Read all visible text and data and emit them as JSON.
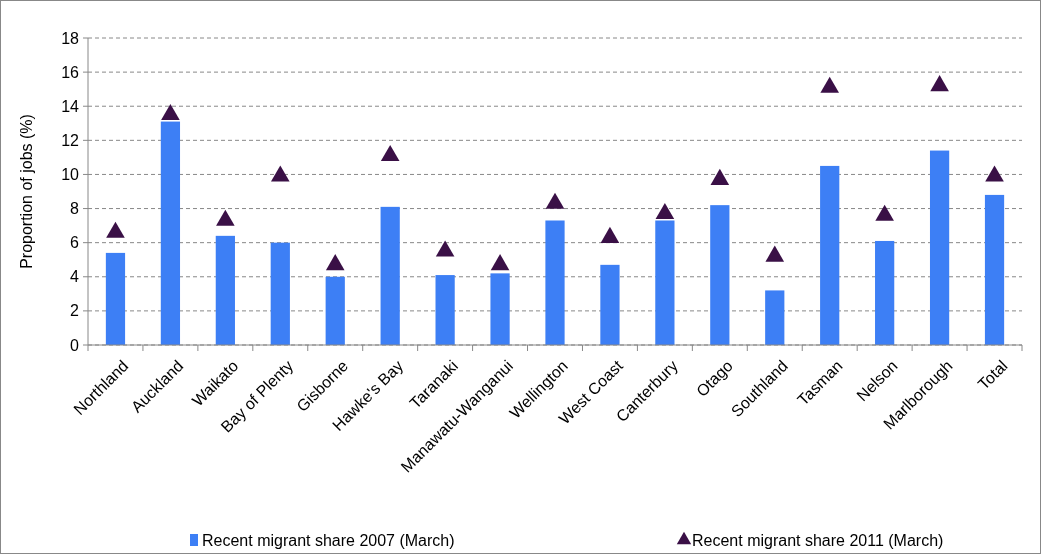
{
  "chart_data": {
    "type": "bar",
    "ylabel": "Proportion of jobs (%)",
    "categories": [
      "Northland",
      "Auckland",
      "Waikato",
      "Bay of Plenty",
      "Gisborne",
      "Hawke's Bay",
      "Taranaki",
      "Manawatu-Wanganui",
      "Wellington",
      "West Coast",
      "Canterbury",
      "Otago",
      "Southland",
      "Tasman",
      "Nelson",
      "Marlborough",
      "Total"
    ],
    "series": [
      {
        "name": "Recent migrant share 2007 (March)",
        "color": "#3d7ff5",
        "values": [
          5.4,
          13.1,
          6.4,
          6.0,
          4.0,
          8.1,
          4.1,
          4.2,
          7.3,
          4.7,
          7.3,
          8.2,
          3.2,
          10.5,
          6.1,
          11.4,
          8.8
        ]
      },
      {
        "name": "Recent migrant share 2011 (March)",
        "type": "scatter",
        "marker": "triangle",
        "color": "#3a1046",
        "x": [
          "Northland",
          "Auckland",
          "Waikato",
          "Bay of Plenty",
          "Gisborne",
          "Hawke's Bay",
          "Taranaki",
          "Manawatu-Wanganui",
          "Wellington",
          "West Coast",
          "Canterbury",
          "Otago",
          "Southland",
          "Tasman",
          "Nelson",
          "Marlborough",
          "Total"
        ],
        "values": [
          6.6,
          13.5,
          7.3,
          9.9,
          4.7,
          11.1,
          5.5,
          4.7,
          8.3,
          6.3,
          7.7,
          9.7,
          5.2,
          15.1,
          7.6,
          15.2,
          9.9
        ]
      }
    ],
    "ylim": [
      0,
      18
    ],
    "yticks": [
      0,
      2,
      4,
      6,
      8,
      10,
      12,
      14,
      16,
      18
    ],
    "grid": "y",
    "legend": "bottom"
  }
}
